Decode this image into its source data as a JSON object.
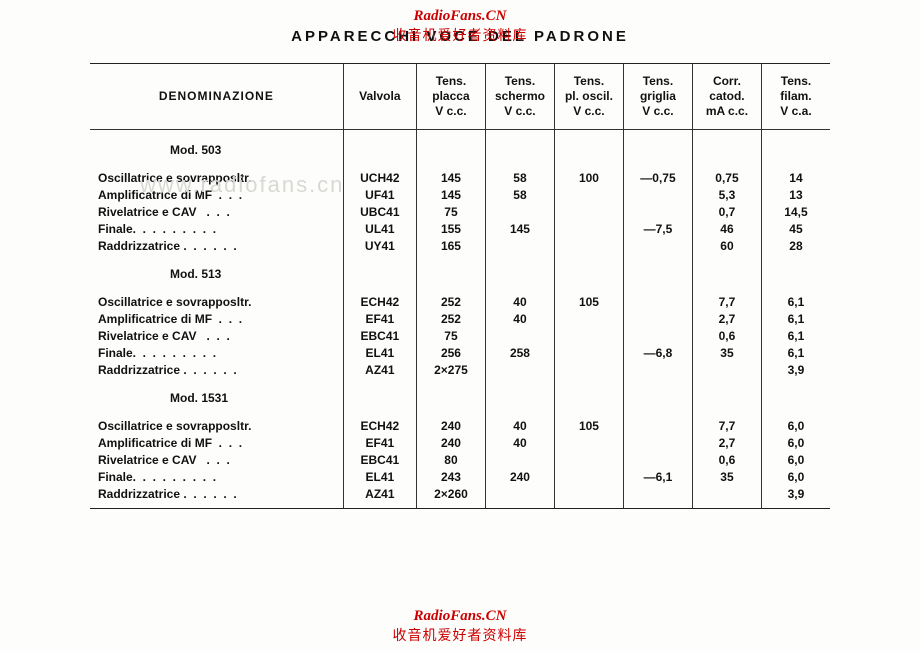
{
  "watermark": {
    "text_en": "RadioFans.CN",
    "text_cn": "收音机爱好者资料库"
  },
  "title": "APPARECCHI  VOCE  DEL  PADRONE",
  "faint_watermark": "www.radiofans.cn",
  "columns": {
    "denom": "DENOMINAZIONE",
    "valvola": "Valvola",
    "placca": "Tens.\nplacca\nV c.c.",
    "schermo": "Tens.\nschermo\nV c.c.",
    "oscill": "Tens.\npl. oscil.\nV c.c.",
    "griglia": "Tens.\ngriglia\nV c.c.",
    "catod": "Corr.\ncatod.\nmA c.c.",
    "filam": "Tens.\nfilam.\nV c.a."
  },
  "sections": [
    {
      "model": "Mod. 503",
      "rows": [
        {
          "denom": "Oscillatrice e sovrapposltr.",
          "valv": "UCH42",
          "placca": "145",
          "schermo": "58",
          "oscill": "100",
          "griglia": "—0,75",
          "catod": "0,75",
          "filam": "14"
        },
        {
          "denom": "Amplificatrice di MF  .  .  .",
          "valv": "UF41",
          "placca": "145",
          "schermo": "58",
          "oscill": "",
          "griglia": "",
          "catod": "5,3",
          "filam": "13"
        },
        {
          "denom": "Rivelatrice e CAV   .  .  .",
          "valv": "UBC41",
          "placca": "75",
          "schermo": "",
          "oscill": "",
          "griglia": "",
          "catod": "0,7",
          "filam": "14,5"
        },
        {
          "denom": "Finale.  .  .  .  .  .  .  .  .",
          "valv": "UL41",
          "placca": "155",
          "schermo": "145",
          "oscill": "",
          "griglia": "—7,5",
          "catod": "46",
          "filam": "45"
        },
        {
          "denom": "Raddrizzatrice .  .  .  .  .  .",
          "valv": "UY41",
          "placca": "165",
          "schermo": "",
          "oscill": "",
          "griglia": "",
          "catod": "60",
          "filam": "28"
        }
      ]
    },
    {
      "model": "Mod. 513",
      "rows": [
        {
          "denom": "Oscillatrice e sovrapposltr.",
          "valv": "ECH42",
          "placca": "252",
          "schermo": "40",
          "oscill": "105",
          "griglia": "",
          "catod": "7,7",
          "filam": "6,1"
        },
        {
          "denom": "Amplificatrice di MF  .  .  .",
          "valv": "EF41",
          "placca": "252",
          "schermo": "40",
          "oscill": "",
          "griglia": "",
          "catod": "2,7",
          "filam": "6,1"
        },
        {
          "denom": "Rivelatrice e CAV   .  .  .",
          "valv": "EBC41",
          "placca": "75",
          "schermo": "",
          "oscill": "",
          "griglia": "",
          "catod": "0,6",
          "filam": "6,1"
        },
        {
          "denom": "Finale.  .  .  .  .  .  .  .  .",
          "valv": "EL41",
          "placca": "256",
          "schermo": "258",
          "oscill": "",
          "griglia": "—6,8",
          "catod": "35",
          "filam": "6,1"
        },
        {
          "denom": "Raddrizzatrice .  .  .  .  .  .",
          "valv": "AZ41",
          "placca": "2×275",
          "schermo": "",
          "oscill": "",
          "griglia": "",
          "catod": "",
          "filam": "3,9"
        }
      ]
    },
    {
      "model": "Mod. 1531",
      "rows": [
        {
          "denom": "Oscillatrice e sovrapposltr.",
          "valv": "ECH42",
          "placca": "240",
          "schermo": "40",
          "oscill": "105",
          "griglia": "",
          "catod": "7,7",
          "filam": "6,0"
        },
        {
          "denom": "Amplificatrice di MF  .  .  .",
          "valv": "EF41",
          "placca": "240",
          "schermo": "40",
          "oscill": "",
          "griglia": "",
          "catod": "2,7",
          "filam": "6,0"
        },
        {
          "denom": "Rivelatrice e CAV   .  .  .",
          "valv": "EBC41",
          "placca": "80",
          "schermo": "",
          "oscill": "",
          "griglia": "",
          "catod": "0,6",
          "filam": "6,0"
        },
        {
          "denom": "Finale.  .  .  .  .  .  .  .  .",
          "valv": "EL41",
          "placca": "243",
          "schermo": "240",
          "oscill": "",
          "griglia": "—6,1",
          "catod": "35",
          "filam": "6,0"
        },
        {
          "denom": "Raddrizzatrice .  .  .  .  .  .",
          "valv": "AZ41",
          "placca": "2×260",
          "schermo": "",
          "oscill": "",
          "griglia": "",
          "catod": "",
          "filam": "3,9"
        }
      ]
    }
  ]
}
